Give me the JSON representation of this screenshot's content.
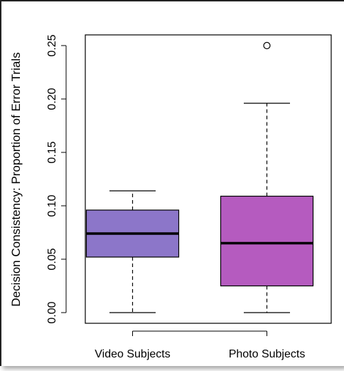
{
  "chart_data": {
    "type": "boxplot",
    "title": "",
    "xlabel": "",
    "ylabel": "Decision Consistency: Proportion of Error Trials",
    "ylim": [
      -0.01,
      0.26
    ],
    "yticks": [
      "0.00",
      "0.05",
      "0.10",
      "0.15",
      "0.20",
      "0.25"
    ],
    "grid": false,
    "legend": "none",
    "categories": [
      "Video Subjects",
      "Photo Subjects"
    ],
    "boxes": [
      {
        "name": "Video Subjects",
        "whisker_low": 0.0,
        "q1": 0.052,
        "median": 0.074,
        "q3": 0.096,
        "whisker_high": 0.114,
        "outliers": [],
        "color": "#8c76c9"
      },
      {
        "name": "Photo Subjects",
        "whisker_low": 0.0,
        "q1": 0.025,
        "median": 0.065,
        "q3": 0.109,
        "whisker_high": 0.196,
        "outliers": [
          0.25
        ],
        "color": "#b55bbf"
      }
    ]
  }
}
